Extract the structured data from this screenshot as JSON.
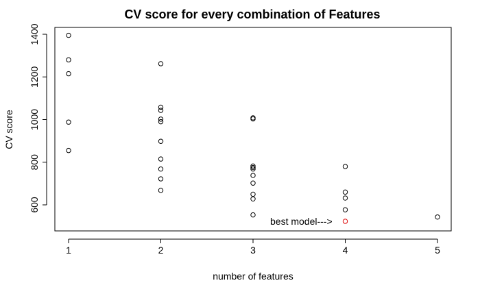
{
  "chart_data": {
    "type": "scatter",
    "title": "CV score for every combination of Features",
    "xlabel": "number of features",
    "ylabel": "CV score",
    "xlim": [
      0.98,
      5.02
    ],
    "ylim": [
      490,
      1425
    ],
    "x_ticks": [
      1,
      2,
      3,
      4,
      5
    ],
    "y_ticks": [
      600,
      800,
      1000,
      1200,
      1400
    ],
    "grid": false,
    "series": [
      {
        "color": "#000000",
        "points": [
          {
            "x": 1,
            "y": 1395
          },
          {
            "x": 1,
            "y": 1280
          },
          {
            "x": 1,
            "y": 1215
          },
          {
            "x": 1,
            "y": 988
          },
          {
            "x": 1,
            "y": 855
          },
          {
            "x": 2,
            "y": 1262
          },
          {
            "x": 2,
            "y": 1058
          },
          {
            "x": 2,
            "y": 1043
          },
          {
            "x": 2,
            "y": 1002
          },
          {
            "x": 2,
            "y": 990
          },
          {
            "x": 2,
            "y": 898
          },
          {
            "x": 2,
            "y": 815
          },
          {
            "x": 2,
            "y": 768
          },
          {
            "x": 2,
            "y": 722
          },
          {
            "x": 2,
            "y": 668
          },
          {
            "x": 3,
            "y": 1008
          },
          {
            "x": 3,
            "y": 1003
          },
          {
            "x": 3,
            "y": 782
          },
          {
            "x": 3,
            "y": 775
          },
          {
            "x": 3,
            "y": 768
          },
          {
            "x": 3,
            "y": 738
          },
          {
            "x": 3,
            "y": 702
          },
          {
            "x": 3,
            "y": 650
          },
          {
            "x": 3,
            "y": 628
          },
          {
            "x": 3,
            "y": 553
          },
          {
            "x": 4,
            "y": 780
          },
          {
            "x": 4,
            "y": 660
          },
          {
            "x": 4,
            "y": 632
          },
          {
            "x": 4,
            "y": 577
          },
          {
            "x": 5,
            "y": 543
          }
        ]
      },
      {
        "color": "#dd0000",
        "points": [
          {
            "x": 4,
            "y": 523
          }
        ]
      }
    ],
    "annotations": [
      {
        "text": "best model--->",
        "x": 3.86,
        "y": 523
      }
    ]
  }
}
